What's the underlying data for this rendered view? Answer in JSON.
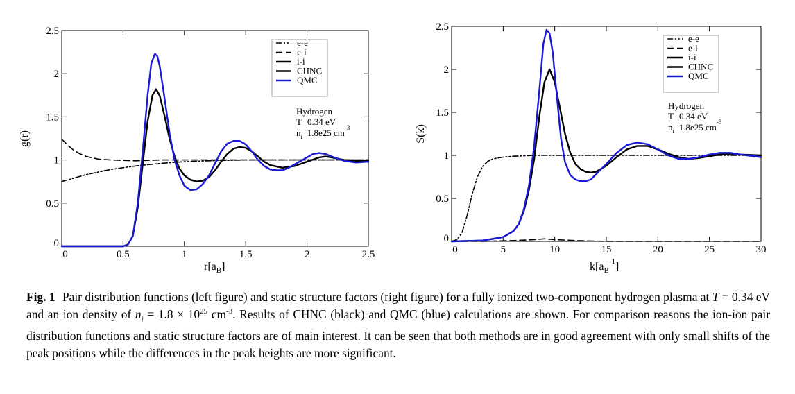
{
  "left_figure": {
    "ylabel": "g(r)",
    "xlabel": "r[a",
    "xlabel_sub": "B",
    "xlabel_close": "]",
    "info_title": "Hydrogen",
    "info_T_label": "T",
    "info_T": "0.34 eV",
    "info_n_label": "n",
    "info_n_sub": "i",
    "info_n": "1.8e25 cm",
    "info_n_exp": "-3"
  },
  "right_figure": {
    "ylabel": "S(k)",
    "xlabel": "k[a",
    "xlabel_sub": "B",
    "xlabel_sup": "-1",
    "xlabel_close": "]",
    "info_title": "Hydrogen",
    "info_T_label": "T",
    "info_T": "0.34 eV",
    "info_n_label": "n",
    "info_n_sub": "i",
    "info_n": "1.8e25 cm",
    "info_n_exp": "-3"
  },
  "chart_data": [
    {
      "type": "line",
      "ylabel": "g(r)",
      "xlabel": "r[aB]",
      "xlim": [
        0,
        2.5
      ],
      "ylim": [
        0,
        2.5
      ],
      "xticks": [
        "0",
        "0.5",
        "1",
        "1.5",
        "2",
        "2.5"
      ],
      "yticks": [
        "0",
        "0.5",
        "1",
        "1.5",
        "2",
        "2.5"
      ],
      "legend_position": "top-right",
      "colors": {
        "CHNC": "#000000",
        "QMC": "#1a1ad6",
        "e-e": "#000000",
        "e-i": "#000000",
        "i-i": "#000000"
      },
      "series": [
        {
          "name": "e-e",
          "style": "dash-dot-dot",
          "x": [
            0,
            0.1,
            0.2,
            0.3,
            0.4,
            0.5,
            0.6,
            0.8,
            1.0,
            1.2,
            1.5,
            2.0,
            2.5
          ],
          "y": [
            0.75,
            0.79,
            0.83,
            0.86,
            0.89,
            0.91,
            0.93,
            0.96,
            0.98,
            0.99,
            1.0,
            1.0,
            1.0
          ]
        },
        {
          "name": "e-i",
          "style": "dashed",
          "x": [
            0,
            0.05,
            0.1,
            0.15,
            0.2,
            0.3,
            0.4,
            0.6,
            0.8,
            1.0,
            1.5,
            2.0,
            2.5
          ],
          "y": [
            1.24,
            1.17,
            1.11,
            1.07,
            1.04,
            1.01,
            1.0,
            0.99,
            1.0,
            1.0,
            1.0,
            1.0,
            1.0
          ]
        },
        {
          "name": "CHNC",
          "style": "solid",
          "x": [
            0,
            0.3,
            0.5,
            0.54,
            0.58,
            0.62,
            0.66,
            0.7,
            0.74,
            0.77,
            0.8,
            0.84,
            0.88,
            0.92,
            0.96,
            1.0,
            1.05,
            1.1,
            1.15,
            1.2,
            1.25,
            1.3,
            1.35,
            1.4,
            1.45,
            1.5,
            1.55,
            1.6,
            1.65,
            1.7,
            1.8,
            1.9,
            2.0,
            2.1,
            2.15,
            2.2,
            2.3,
            2.4,
            2.5
          ],
          "y": [
            0,
            0,
            0,
            0.02,
            0.12,
            0.45,
            0.95,
            1.45,
            1.75,
            1.82,
            1.74,
            1.5,
            1.24,
            1.04,
            0.9,
            0.82,
            0.77,
            0.75,
            0.76,
            0.8,
            0.88,
            0.98,
            1.07,
            1.13,
            1.15,
            1.14,
            1.1,
            1.04,
            0.98,
            0.94,
            0.91,
            0.93,
            0.98,
            1.03,
            1.04,
            1.03,
            1.0,
            0.99,
            0.99
          ]
        },
        {
          "name": "QMC",
          "style": "solid",
          "x": [
            0,
            0.3,
            0.5,
            0.54,
            0.58,
            0.62,
            0.66,
            0.7,
            0.73,
            0.76,
            0.78,
            0.8,
            0.84,
            0.88,
            0.92,
            0.96,
            1.0,
            1.05,
            1.1,
            1.15,
            1.2,
            1.25,
            1.3,
            1.35,
            1.4,
            1.45,
            1.5,
            1.55,
            1.6,
            1.65,
            1.7,
            1.75,
            1.8,
            1.85,
            1.9,
            2.0,
            2.05,
            2.1,
            2.15,
            2.2,
            2.3,
            2.4,
            2.5
          ],
          "y": [
            0,
            0,
            0,
            0.02,
            0.12,
            0.5,
            1.1,
            1.75,
            2.12,
            2.23,
            2.2,
            2.08,
            1.7,
            1.3,
            1.0,
            0.82,
            0.7,
            0.65,
            0.66,
            0.72,
            0.82,
            0.96,
            1.1,
            1.19,
            1.22,
            1.22,
            1.18,
            1.1,
            1.0,
            0.93,
            0.89,
            0.88,
            0.88,
            0.91,
            0.95,
            1.03,
            1.07,
            1.08,
            1.07,
            1.04,
            0.99,
            0.97,
            0.98
          ]
        }
      ]
    },
    {
      "type": "line",
      "ylabel": "S(k)",
      "xlabel": "k[aB^-1]",
      "xlim": [
        0,
        30
      ],
      "ylim": [
        0,
        2.5
      ],
      "xticks": [
        "0",
        "5",
        "10",
        "15",
        "20",
        "25",
        "30"
      ],
      "yticks": [
        "0",
        "0.5",
        "1",
        "1.5",
        "2",
        "2.5"
      ],
      "legend_position": "top-right",
      "colors": {
        "CHNC": "#000000",
        "QMC": "#1a1ad6",
        "e-e": "#000000",
        "e-i": "#000000",
        "i-i": "#000000"
      },
      "series": [
        {
          "name": "e-e",
          "style": "dash-dot-dot",
          "x": [
            0,
            0.5,
            1,
            1.5,
            2,
            2.5,
            3,
            3.5,
            4,
            4.5,
            5,
            6,
            7,
            8,
            10,
            15,
            20,
            25,
            30
          ],
          "y": [
            0,
            0.02,
            0.1,
            0.3,
            0.55,
            0.75,
            0.87,
            0.93,
            0.96,
            0.97,
            0.98,
            0.99,
            0.995,
            1.0,
            1.0,
            1.0,
            1.0,
            1.0,
            1.0
          ]
        },
        {
          "name": "e-i",
          "style": "dashed",
          "x": [
            0,
            3,
            6,
            8,
            9,
            10,
            12,
            15,
            20,
            30
          ],
          "y": [
            0,
            0.0,
            0.01,
            0.02,
            0.03,
            0.02,
            0.01,
            0.0,
            0.0,
            0.0
          ]
        },
        {
          "name": "CHNC",
          "style": "solid",
          "x": [
            0,
            3,
            5,
            6,
            6.5,
            7,
            7.5,
            8,
            8.5,
            9,
            9.5,
            10,
            10.5,
            11,
            11.5,
            12,
            12.5,
            13,
            13.5,
            14,
            15,
            16,
            17,
            18,
            19,
            20,
            21,
            22,
            23,
            24,
            25,
            26,
            27,
            28,
            30
          ],
          "y": [
            0,
            0.01,
            0.05,
            0.12,
            0.2,
            0.35,
            0.6,
            0.95,
            1.45,
            1.85,
            2.0,
            1.85,
            1.55,
            1.25,
            1.03,
            0.9,
            0.84,
            0.81,
            0.8,
            0.81,
            0.88,
            0.98,
            1.07,
            1.11,
            1.11,
            1.07,
            1.02,
            0.98,
            0.96,
            0.97,
            0.99,
            1.01,
            1.02,
            1.01,
            1.0
          ]
        },
        {
          "name": "QMC",
          "style": "solid",
          "x": [
            0,
            3,
            5,
            6,
            6.5,
            7,
            7.5,
            8,
            8.5,
            8.9,
            9.2,
            9.5,
            9.8,
            10.2,
            10.6,
            11,
            11.5,
            12,
            12.5,
            13,
            13.5,
            14,
            15,
            16,
            17,
            18,
            19,
            20,
            21,
            22,
            23,
            24,
            25,
            26,
            27,
            28,
            30
          ],
          "y": [
            0,
            0.01,
            0.05,
            0.12,
            0.2,
            0.37,
            0.65,
            1.1,
            1.75,
            2.3,
            2.46,
            2.42,
            2.2,
            1.7,
            1.2,
            0.92,
            0.77,
            0.72,
            0.7,
            0.7,
            0.72,
            0.78,
            0.9,
            1.03,
            1.12,
            1.15,
            1.13,
            1.07,
            1.0,
            0.96,
            0.96,
            0.98,
            1.01,
            1.03,
            1.03,
            1.01,
            0.98
          ]
        }
      ]
    }
  ],
  "legend": [
    {
      "label": "e-e",
      "style": "dash-dot-dot",
      "color": "#000000"
    },
    {
      "label": "e-i",
      "style": "dashed",
      "color": "#000000"
    },
    {
      "label": "i-i",
      "style": "solid",
      "color": "#000000"
    },
    {
      "label": "CHNC",
      "style": "solid",
      "color": "#000000"
    },
    {
      "label": "QMC",
      "style": "solid",
      "color": "#1a1ad6"
    }
  ],
  "caption": {
    "fig_label": "Fig. 1",
    "text_1": "Pair distribution functions (left figure) and static structure factors (right figure) for a fully ionized two-component hydrogen plasma at ",
    "T_symbol": "T",
    "T_eq": " = 0.34 eV and an ion density of ",
    "n_symbol": "n",
    "n_sub": "i",
    "n_eq": " = 1.8 × 10",
    "n_exp": "25",
    "n_unit": " cm",
    "n_unit_exp": "-3",
    "text_2": ". Results of CHNC (black) and QMC (blue) calculations are shown. For comparison reasons the ion-ion pair distribution functions and static structure factors are of main interest. It can be seen that both methods are in good agreement with only small shifts of the peak positions while the differences in the peak heights are more significant."
  }
}
